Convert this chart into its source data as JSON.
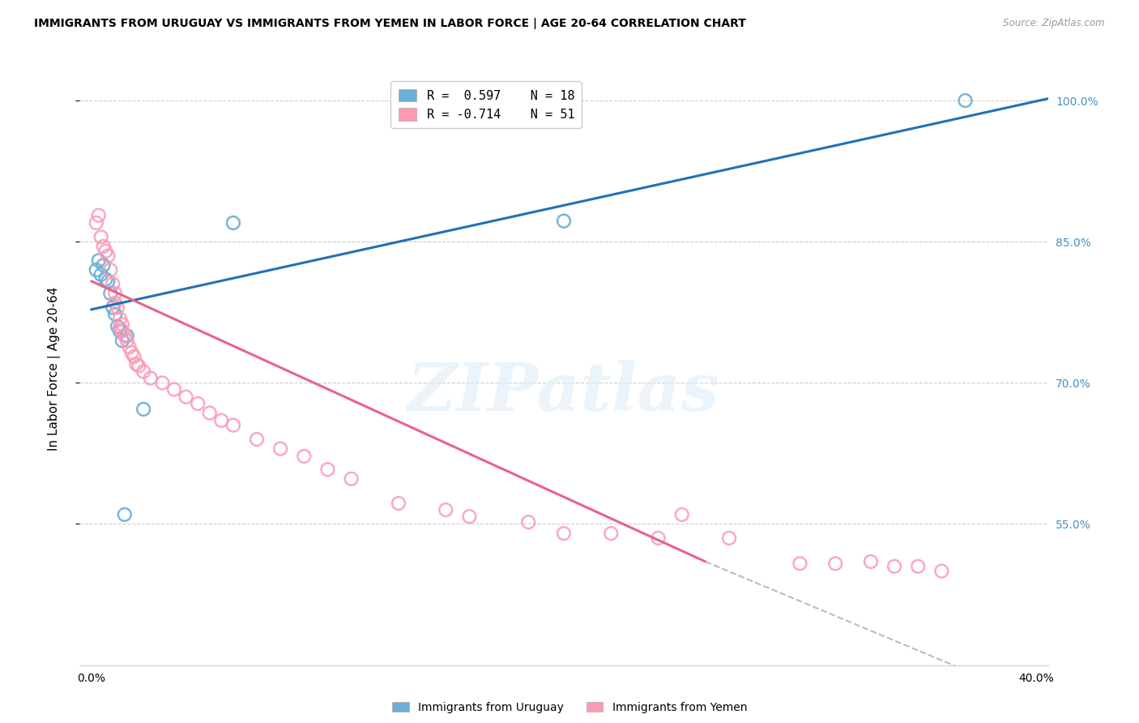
{
  "title": "IMMIGRANTS FROM URUGUAY VS IMMIGRANTS FROM YEMEN IN LABOR FORCE | AGE 20-64 CORRELATION CHART",
  "source": "Source: ZipAtlas.com",
  "ylabel": "In Labor Force | Age 20-64",
  "watermark": "ZIPatlas",
  "r_uruguay": 0.597,
  "n_uruguay": 18,
  "r_yemen": -0.714,
  "n_yemen": 51,
  "xlim": [
    -0.005,
    0.405
  ],
  "ylim": [
    0.4,
    1.03
  ],
  "yticks": [
    0.55,
    0.7,
    0.85,
    1.0
  ],
  "ytick_labels": [
    "55.0%",
    "70.0%",
    "85.0%",
    "100.0%"
  ],
  "color_uruguay": "#6baed6",
  "color_yemen": "#fb9ab4",
  "color_blue_line": "#2171b5",
  "color_pink_line": "#e8638a",
  "color_right_axis": "#4292c6",
  "color_grid": "#cccccc",
  "uruguay_x": [
    0.002,
    0.003,
    0.004,
    0.005,
    0.006,
    0.007,
    0.008,
    0.009,
    0.01,
    0.011,
    0.012,
    0.013,
    0.015,
    0.022,
    0.06,
    0.2,
    0.37,
    0.014
  ],
  "uruguay_y": [
    0.82,
    0.83,
    0.815,
    0.825,
    0.81,
    0.808,
    0.795,
    0.78,
    0.773,
    0.76,
    0.755,
    0.745,
    0.75,
    0.672,
    0.87,
    0.872,
    1.0,
    0.56
  ],
  "yemen_x": [
    0.002,
    0.003,
    0.004,
    0.005,
    0.006,
    0.007,
    0.008,
    0.009,
    0.01,
    0.01,
    0.011,
    0.012,
    0.012,
    0.013,
    0.013,
    0.014,
    0.015,
    0.016,
    0.017,
    0.018,
    0.019,
    0.02,
    0.022,
    0.025,
    0.03,
    0.035,
    0.04,
    0.045,
    0.05,
    0.055,
    0.06,
    0.07,
    0.08,
    0.09,
    0.1,
    0.11,
    0.13,
    0.15,
    0.16,
    0.185,
    0.2,
    0.22,
    0.24,
    0.25,
    0.27,
    0.3,
    0.315,
    0.33,
    0.34,
    0.35,
    0.36
  ],
  "yemen_y": [
    0.87,
    0.878,
    0.855,
    0.845,
    0.84,
    0.835,
    0.82,
    0.805,
    0.795,
    0.785,
    0.78,
    0.768,
    0.758,
    0.762,
    0.755,
    0.75,
    0.745,
    0.738,
    0.732,
    0.728,
    0.72,
    0.718,
    0.712,
    0.705,
    0.7,
    0.693,
    0.685,
    0.678,
    0.668,
    0.66,
    0.655,
    0.64,
    0.63,
    0.622,
    0.608,
    0.598,
    0.572,
    0.565,
    0.558,
    0.552,
    0.54,
    0.54,
    0.535,
    0.56,
    0.535,
    0.508,
    0.508,
    0.51,
    0.505,
    0.505,
    0.5
  ],
  "ury_line": [
    0.0,
    0.405,
    0.778,
    1.002
  ],
  "yem_line_solid": [
    0.0,
    0.26,
    0.808,
    0.51
  ],
  "yem_line_dashed": [
    0.26,
    0.405,
    0.51,
    0.358
  ]
}
